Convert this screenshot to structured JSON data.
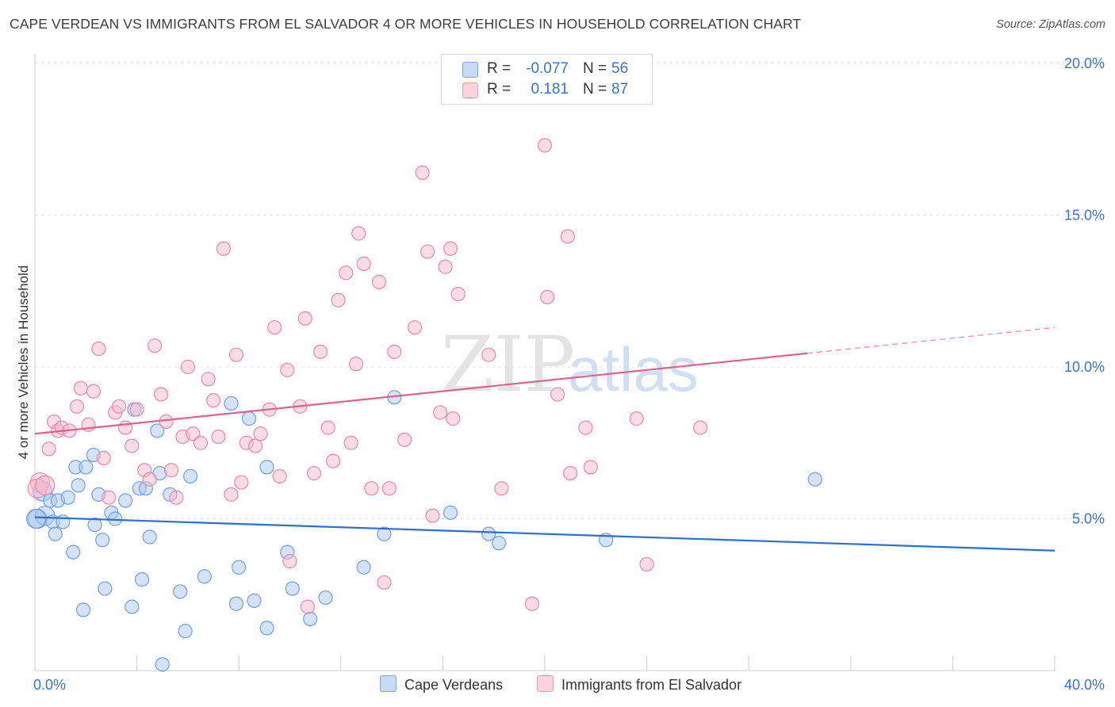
{
  "title": "CAPE VERDEAN VS IMMIGRANTS FROM EL SALVADOR 4 OR MORE VEHICLES IN HOUSEHOLD CORRELATION CHART",
  "source": "Source: ZipAtlas.com",
  "watermark": {
    "zip": "ZIP",
    "atlas": "atlas"
  },
  "legend": {
    "rows": [
      {
        "r_label": "R =",
        "r_value": "-0.077",
        "n_label": "N =",
        "n_value": "56",
        "color": "#a9c8f2"
      },
      {
        "r_label": "R =",
        "r_value": "0.181",
        "n_label": "N =",
        "n_value": "87",
        "color": "#f7b8cc"
      }
    ]
  },
  "bottom_legend": [
    {
      "label": "Cape Verdeans",
      "color": "#a9c8f2"
    },
    {
      "label": "Immigrants from El Salvador",
      "color": "#f7b8cc"
    }
  ],
  "chart_data": {
    "type": "scatter",
    "title": "CAPE VERDEAN VS IMMIGRANTS FROM EL SALVADOR 4 OR MORE VEHICLES IN HOUSEHOLD CORRELATION CHART",
    "xlabel": "",
    "ylabel": "4 or more Vehicles in Household",
    "xlim": [
      0,
      40
    ],
    "ylim": [
      0,
      20.5
    ],
    "x_tick_labels": {
      "0": "0.0%",
      "40": "40.0%"
    },
    "y_ticks": [
      5,
      10,
      15,
      20
    ],
    "y_tick_labels": [
      "5.0%",
      "10.0%",
      "15.0%",
      "20.0%"
    ],
    "grid": true,
    "legend_position": "top-center",
    "series": [
      {
        "name": "Cape Verdeans",
        "color": "#a9c8f2",
        "stroke": "#6f9fe0",
        "trend_color": "#2b6fd0",
        "trend": {
          "x0": 0,
          "y0": 5.05,
          "x1": 40,
          "y1": 3.95,
          "solid_until": 40
        },
        "points": [
          [
            0.1,
            5.0
          ],
          [
            0.3,
            5.9
          ],
          [
            0.4,
            5.1
          ],
          [
            0.6,
            5.6
          ],
          [
            0.7,
            4.9
          ],
          [
            0.8,
            4.5
          ],
          [
            0.9,
            5.6
          ],
          [
            1.1,
            4.9
          ],
          [
            1.3,
            5.7
          ],
          [
            1.5,
            3.9
          ],
          [
            1.6,
            6.7
          ],
          [
            1.7,
            6.1
          ],
          [
            1.9,
            2.0
          ],
          [
            2.0,
            6.7
          ],
          [
            2.3,
            7.1
          ],
          [
            2.35,
            4.8
          ],
          [
            2.5,
            5.8
          ],
          [
            2.65,
            4.3
          ],
          [
            2.75,
            2.7
          ],
          [
            3.0,
            5.2
          ],
          [
            3.15,
            5.0
          ],
          [
            3.55,
            5.6
          ],
          [
            3.8,
            2.1
          ],
          [
            3.9,
            8.6
          ],
          [
            4.1,
            6.0
          ],
          [
            4.2,
            3.0
          ],
          [
            4.35,
            6.0
          ],
          [
            4.5,
            4.4
          ],
          [
            4.8,
            7.9
          ],
          [
            4.9,
            6.5
          ],
          [
            5.0,
            0.2
          ],
          [
            5.3,
            5.8
          ],
          [
            5.7,
            2.6
          ],
          [
            5.9,
            1.3
          ],
          [
            6.1,
            6.4
          ],
          [
            6.65,
            3.1
          ],
          [
            7.7,
            8.8
          ],
          [
            7.9,
            2.2
          ],
          [
            8.0,
            3.4
          ],
          [
            8.4,
            8.3
          ],
          [
            8.6,
            2.3
          ],
          [
            9.1,
            6.7
          ],
          [
            9.1,
            1.4
          ],
          [
            9.9,
            3.9
          ],
          [
            10.1,
            2.7
          ],
          [
            10.8,
            1.7
          ],
          [
            11.4,
            2.4
          ],
          [
            12.9,
            3.4
          ],
          [
            13.7,
            4.5
          ],
          [
            14.1,
            9.0
          ],
          [
            16.3,
            5.2
          ],
          [
            17.8,
            4.5
          ],
          [
            18.2,
            4.2
          ],
          [
            22.4,
            4.3
          ],
          [
            30.6,
            6.3
          ],
          [
            0.05,
            5.0
          ]
        ]
      },
      {
        "name": "Immigrants from El Salvador",
        "color": "#f7b8cc",
        "stroke": "#e78aa8",
        "trend_color": "#e0628a",
        "trend": {
          "x0": 0,
          "y0": 7.8,
          "x1": 40,
          "y1": 11.3,
          "solid_until": 30.3
        },
        "points": [
          [
            0.2,
            6.2
          ],
          [
            0.55,
            7.3
          ],
          [
            0.75,
            8.2
          ],
          [
            0.9,
            7.9
          ],
          [
            1.05,
            8.0
          ],
          [
            1.35,
            7.9
          ],
          [
            1.65,
            8.7
          ],
          [
            1.8,
            9.3
          ],
          [
            2.1,
            8.1
          ],
          [
            2.3,
            9.2
          ],
          [
            2.5,
            10.6
          ],
          [
            2.7,
            7.0
          ],
          [
            2.9,
            5.7
          ],
          [
            3.15,
            8.5
          ],
          [
            3.3,
            8.7
          ],
          [
            3.55,
            8.0
          ],
          [
            3.8,
            7.4
          ],
          [
            4.0,
            8.6
          ],
          [
            4.3,
            6.6
          ],
          [
            4.5,
            6.3
          ],
          [
            4.7,
            10.7
          ],
          [
            4.95,
            9.1
          ],
          [
            5.15,
            8.2
          ],
          [
            5.35,
            6.6
          ],
          [
            5.55,
            5.7
          ],
          [
            5.8,
            7.7
          ],
          [
            6.0,
            10.0
          ],
          [
            6.2,
            7.8
          ],
          [
            6.5,
            7.5
          ],
          [
            6.8,
            9.6
          ],
          [
            7.0,
            8.9
          ],
          [
            7.2,
            7.7
          ],
          [
            7.4,
            13.9
          ],
          [
            7.7,
            5.8
          ],
          [
            7.9,
            10.4
          ],
          [
            8.1,
            6.2
          ],
          [
            8.3,
            7.5
          ],
          [
            8.65,
            7.4
          ],
          [
            8.85,
            7.8
          ],
          [
            9.2,
            8.6
          ],
          [
            9.4,
            11.3
          ],
          [
            9.6,
            6.4
          ],
          [
            9.9,
            9.9
          ],
          [
            10.0,
            3.6
          ],
          [
            10.4,
            8.7
          ],
          [
            10.6,
            11.6
          ],
          [
            10.7,
            2.1
          ],
          [
            10.95,
            6.5
          ],
          [
            11.2,
            10.5
          ],
          [
            11.5,
            8.0
          ],
          [
            11.7,
            6.9
          ],
          [
            11.9,
            12.2
          ],
          [
            12.2,
            13.1
          ],
          [
            12.4,
            7.5
          ],
          [
            12.6,
            10.1
          ],
          [
            12.7,
            14.4
          ],
          [
            12.9,
            13.4
          ],
          [
            13.2,
            6.0
          ],
          [
            13.5,
            12.8
          ],
          [
            13.7,
            2.9
          ],
          [
            13.9,
            6.0
          ],
          [
            14.1,
            10.5
          ],
          [
            14.5,
            7.6
          ],
          [
            14.9,
            11.3
          ],
          [
            15.2,
            16.4
          ],
          [
            15.4,
            13.8
          ],
          [
            15.6,
            5.1
          ],
          [
            15.9,
            8.5
          ],
          [
            16.1,
            13.3
          ],
          [
            16.3,
            13.9
          ],
          [
            16.4,
            8.3
          ],
          [
            16.6,
            12.4
          ],
          [
            17.8,
            10.4
          ],
          [
            18.3,
            6.0
          ],
          [
            19.5,
            2.2
          ],
          [
            20.0,
            17.3
          ],
          [
            20.1,
            12.3
          ],
          [
            20.5,
            9.1
          ],
          [
            20.9,
            14.3
          ],
          [
            21.0,
            6.5
          ],
          [
            21.6,
            8.0
          ],
          [
            21.8,
            6.7
          ],
          [
            23.6,
            8.3
          ],
          [
            24.0,
            3.5
          ],
          [
            26.1,
            8.0
          ],
          [
            0.1,
            6.0
          ],
          [
            0.4,
            6.1
          ]
        ]
      }
    ]
  }
}
